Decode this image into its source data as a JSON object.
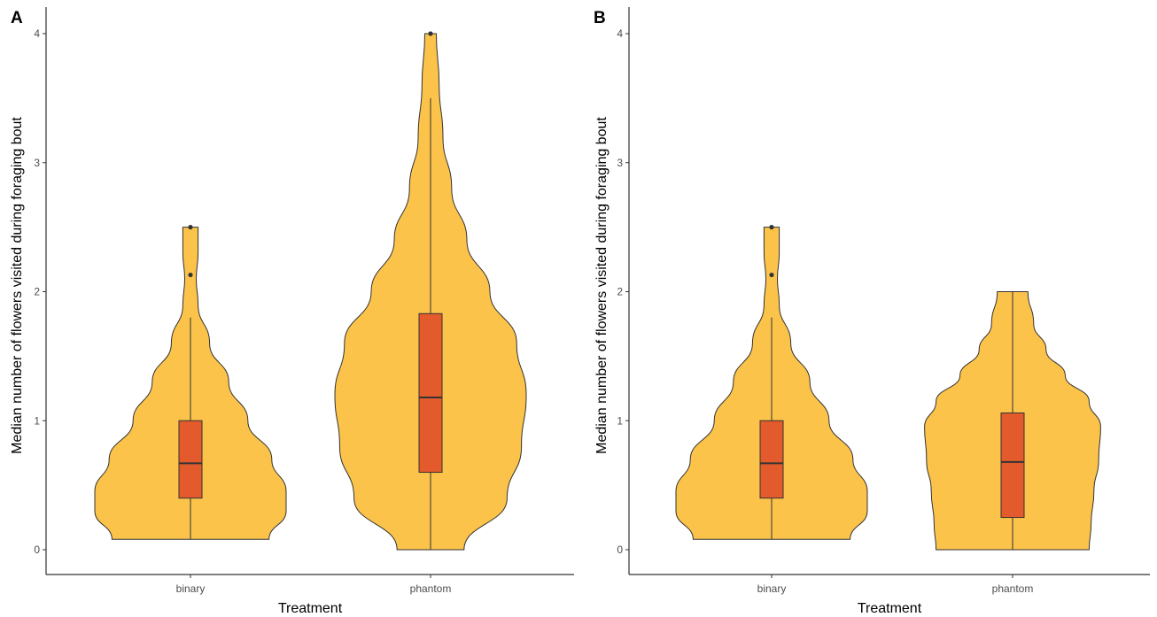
{
  "colors": {
    "violin_fill": "#FBC34A",
    "box_fill": "#E35B2C",
    "outline": "#333333"
  },
  "chart_data": [
    {
      "type": "violin",
      "panel_label": "A",
      "categories": [
        "binary",
        "phantom"
      ],
      "xlabel": "Treatment",
      "ylabel": "Median number of flowers visited during foraging bout",
      "ylim": [
        0,
        4
      ],
      "yticks": [
        "0",
        "1",
        "2",
        "3",
        "4"
      ],
      "grid": false,
      "groups": [
        {
          "name": "binary",
          "box": {
            "q1": 0.4,
            "median": 0.67,
            "q3": 1.0,
            "whisker_low": 0.08,
            "whisker_high": 1.8
          },
          "outliers": [
            2.13,
            2.5
          ],
          "violin_profile": [
            [
              0.08,
              0.82
            ],
            [
              0.3,
              1.0
            ],
            [
              0.45,
              1.0
            ],
            [
              0.7,
              0.85
            ],
            [
              1.0,
              0.6
            ],
            [
              1.3,
              0.4
            ],
            [
              1.6,
              0.2
            ],
            [
              1.9,
              0.08
            ],
            [
              2.1,
              0.06
            ],
            [
              2.3,
              0.08
            ],
            [
              2.5,
              0.08
            ]
          ]
        },
        {
          "name": "phantom",
          "box": {
            "q1": 0.6,
            "median": 1.18,
            "q3": 1.83,
            "whisker_low": 0.0,
            "whisker_high": 3.5
          },
          "outliers": [
            4.0
          ],
          "violin_profile": [
            [
              0.0,
              0.35
            ],
            [
              0.4,
              0.8
            ],
            [
              0.8,
              0.95
            ],
            [
              1.2,
              1.0
            ],
            [
              1.6,
              0.9
            ],
            [
              2.0,
              0.62
            ],
            [
              2.4,
              0.38
            ],
            [
              2.8,
              0.22
            ],
            [
              3.2,
              0.13
            ],
            [
              3.6,
              0.09
            ],
            [
              4.0,
              0.06
            ]
          ]
        }
      ]
    },
    {
      "type": "violin",
      "panel_label": "B",
      "categories": [
        "binary",
        "phantom"
      ],
      "xlabel": "Treatment",
      "ylabel": "Median number of flowers visited during foraging bout",
      "ylim": [
        0,
        4
      ],
      "yticks": [
        "0",
        "1",
        "2",
        "3",
        "4"
      ],
      "grid": false,
      "groups": [
        {
          "name": "binary",
          "box": {
            "q1": 0.4,
            "median": 0.67,
            "q3": 1.0,
            "whisker_low": 0.08,
            "whisker_high": 1.8
          },
          "outliers": [
            2.13,
            2.5
          ],
          "violin_profile": [
            [
              0.08,
              0.82
            ],
            [
              0.3,
              1.0
            ],
            [
              0.45,
              1.0
            ],
            [
              0.7,
              0.85
            ],
            [
              1.0,
              0.6
            ],
            [
              1.3,
              0.4
            ],
            [
              1.6,
              0.2
            ],
            [
              1.9,
              0.08
            ],
            [
              2.1,
              0.06
            ],
            [
              2.3,
              0.08
            ],
            [
              2.5,
              0.08
            ]
          ]
        },
        {
          "name": "phantom",
          "box": {
            "q1": 0.25,
            "median": 0.68,
            "q3": 1.06,
            "whisker_low": 0.0,
            "whisker_high": 2.0
          },
          "outliers": [],
          "violin_profile": [
            [
              0.0,
              0.8
            ],
            [
              0.2,
              0.82
            ],
            [
              0.45,
              0.85
            ],
            [
              0.7,
              0.9
            ],
            [
              0.95,
              0.92
            ],
            [
              1.15,
              0.8
            ],
            [
              1.35,
              0.55
            ],
            [
              1.55,
              0.35
            ],
            [
              1.75,
              0.22
            ],
            [
              2.0,
              0.16
            ]
          ]
        }
      ]
    }
  ]
}
